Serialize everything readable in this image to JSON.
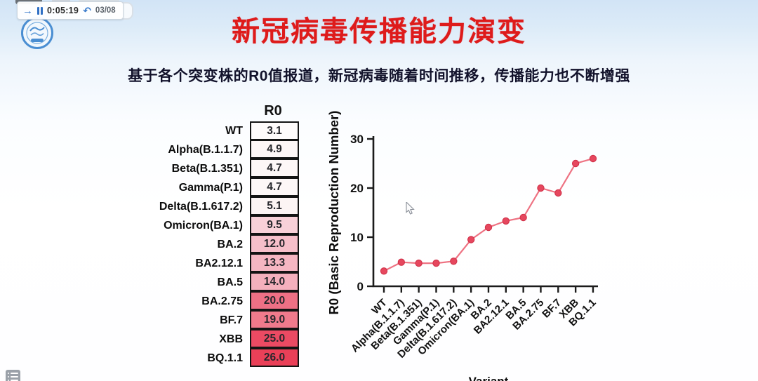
{
  "player": {
    "time": "0:05:19",
    "page_counter": "03/08"
  },
  "slide": {
    "title": "新冠病毒传播能力演变",
    "subtitle": "基于各个突变株的R0值报道，新冠病毒随着时间推移，传播能力也不断增强"
  },
  "r0_table": {
    "header": "R0",
    "rows": [
      {
        "variant": "WT",
        "r0": "3.1",
        "cell_color": "#fefbfb"
      },
      {
        "variant": "Alpha(B.1.1.7)",
        "r0": "4.9",
        "cell_color": "#fdf6f6"
      },
      {
        "variant": "Beta(B.1.351)",
        "r0": "4.7",
        "cell_color": "#fdf7f7"
      },
      {
        "variant": "Gamma(P.1)",
        "r0": "4.7",
        "cell_color": "#fdf7f7"
      },
      {
        "variant": "Delta(B.1.617.2)",
        "r0": "5.1",
        "cell_color": "#fcf4f4"
      },
      {
        "variant": "Omicron(BA.1)",
        "r0": "9.5",
        "cell_color": "#f8d0d8"
      },
      {
        "variant": "BA.2",
        "r0": "12.0",
        "cell_color": "#f6bfca"
      },
      {
        "variant": "BA2.12.1",
        "r0": "13.3",
        "cell_color": "#f5b6c2"
      },
      {
        "variant": "BA.5",
        "r0": "14.0",
        "cell_color": "#f4b0bd"
      },
      {
        "variant": "BA.2.75",
        "r0": "20.0",
        "cell_color": "#ee7085"
      },
      {
        "variant": "BF.7",
        "r0": "19.0",
        "cell_color": "#ef7a8c"
      },
      {
        "variant": "XBB",
        "r0": "25.0",
        "cell_color": "#eb4a63"
      },
      {
        "variant": "BQ.1.1",
        "r0": "26.0",
        "cell_color": "#ea4058"
      }
    ]
  },
  "chart_data": {
    "type": "line",
    "categories": [
      "WT",
      "Alpha(B.1.1.7)",
      "Beta(B.1.351)",
      "Gamma(P.1)",
      "Delta(B.1.617.2)",
      "Omicron(BA.1)",
      "BA.2",
      "BA2.12.1",
      "BA.5",
      "BA.2.75",
      "BF.7",
      "XBB",
      "BQ.1.1"
    ],
    "values": [
      3.1,
      4.9,
      4.7,
      4.7,
      5.1,
      9.5,
      12.0,
      13.3,
      14.0,
      20.0,
      19.0,
      25.0,
      26.0
    ],
    "title": "",
    "xlabel": "Variant",
    "ylabel": "R0 (Basic Reproduction Number)",
    "ylim": [
      0,
      30
    ],
    "yticks": [
      0,
      10,
      20,
      30
    ],
    "grid": false,
    "legend": "none",
    "line_color": "#ee7282",
    "marker_color": "#e6475e",
    "marker_stroke": "#d2344b",
    "axis_color": "#1b1b1b"
  },
  "colors": {
    "title_red": "#de1b1b",
    "subtitle_dark": "#12122b",
    "accent_blue": "#3b7ccb"
  }
}
